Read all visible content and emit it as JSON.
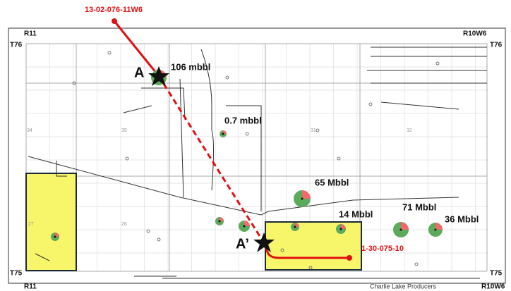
{
  "well_start": "13-02-076-11W6",
  "well_end": "1-30-075-10",
  "range_top_left": "R11",
  "range_top_right": "R10W6",
  "range_bottom_left": "R11",
  "range_bottom_right": "R10W6",
  "township_top_left": "T76",
  "township_top_right": "T76",
  "township_bottom_left": "T75",
  "township_bottom_right": "T75",
  "point_a": "A",
  "point_a_prime": "A’",
  "volumes": [
    "106 mbbl",
    "0.7 mbbl",
    "65 Mbbl",
    "14 Mbbl",
    "71 Mbbl",
    "36 Mbbl"
  ],
  "sections": [
    "34",
    "35",
    "31",
    "32",
    "27",
    "26"
  ],
  "credit": "Charlie Lake Producers"
}
